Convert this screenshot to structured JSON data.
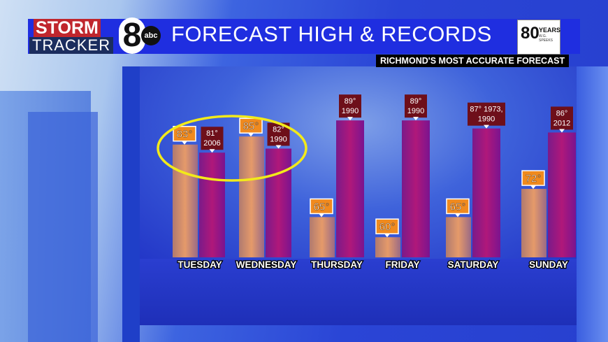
{
  "header": {
    "logo_storm": "STORM",
    "logo_tracker": "TRACKER",
    "logo_channel": "8",
    "logo_network": "abc",
    "title": "FORECAST HIGH & RECORDS",
    "badge_number": "80",
    "badge_years": "YEARS",
    "badge_sponsor": "W.G. SPEEKS",
    "tagline": "RICHMOND'S MOST ACCURATE FORECAST"
  },
  "colors": {
    "forecast": "#e08850",
    "record": "#a0157a",
    "forecast_label": "#f08a1e",
    "record_label": "#6e0f1a",
    "highlight": "#f2ea1a"
  },
  "chart_data": {
    "type": "bar",
    "title": "FORECAST HIGH & RECORDS",
    "categories": [
      "TUESDAY",
      "WEDNESDAY",
      "THURSDAY",
      "FRIDAY",
      "SATURDAY",
      "SUNDAY"
    ],
    "series": [
      {
        "values": [
          83,
          85,
          65,
          60,
          65,
          72
        ],
        "labels": [
          "83°",
          "85°",
          "65°",
          "60°",
          "65°",
          "72°"
        ]
      },
      {
        "values": [
          81,
          82,
          89,
          89,
          87,
          86
        ],
        "labels": [
          [
            "81°",
            "2006"
          ],
          [
            "82°",
            "1990"
          ],
          [
            "89°",
            "1990"
          ],
          [
            "89°",
            "1990"
          ],
          [
            "87° 1973,",
            "1990"
          ],
          [
            "86°",
            "2012"
          ]
        ]
      }
    ],
    "ylim": [
      55,
      90
    ],
    "grid": false,
    "highlight": [
      "TUESDAY",
      "WEDNESDAY"
    ]
  }
}
